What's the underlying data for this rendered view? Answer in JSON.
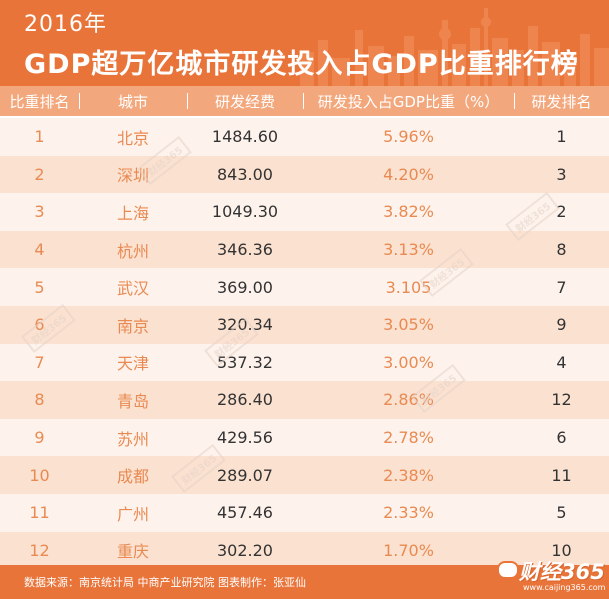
{
  "header": {
    "year": "2016年",
    "title": "GDP超万亿城市研发投入占GDP比重排行榜"
  },
  "table": {
    "columns": [
      "比重排名",
      "城市",
      "研发经费",
      "研发投入占GDP比重（%）",
      "研发排名"
    ],
    "rows": [
      [
        "1",
        "北京",
        "1484.60",
        "5.96%",
        "1"
      ],
      [
        "2",
        "深圳",
        "843.00",
        "4.20%",
        "3"
      ],
      [
        "3",
        "上海",
        "1049.30",
        "3.82%",
        "2"
      ],
      [
        "4",
        "杭州",
        "346.36",
        "3.13%",
        "8"
      ],
      [
        "5",
        "武汉",
        "369.00",
        "3.105",
        "7"
      ],
      [
        "6",
        "南京",
        "320.34",
        "3.05%",
        "9"
      ],
      [
        "7",
        "天津",
        "537.32",
        "3.00%",
        "4"
      ],
      [
        "8",
        "青岛",
        "286.40",
        "2.86%",
        "12"
      ],
      [
        "9",
        "苏州",
        "429.56",
        "2.78%",
        "6"
      ],
      [
        "10",
        "成都",
        "289.07",
        "2.38%",
        "11"
      ],
      [
        "11",
        "广州",
        "457.46",
        "2.33%",
        "5"
      ],
      [
        "12",
        "重庆",
        "302.20",
        "1.70%",
        "10"
      ]
    ]
  },
  "footer": {
    "source": "数据来源：南京统计局 中商产业研究院  图表制作：张亚仙"
  },
  "brand": {
    "name": "财经365",
    "url": "www.caijing365.com"
  },
  "watermark": {
    "text": "财经365"
  },
  "colors": {
    "accent": "#e9743a",
    "header_row": "#f3a77c",
    "row_light": "#fef3ec",
    "row_dark": "#fbe1d0",
    "text_orange": "#e98a52",
    "text_dark": "#333333"
  }
}
